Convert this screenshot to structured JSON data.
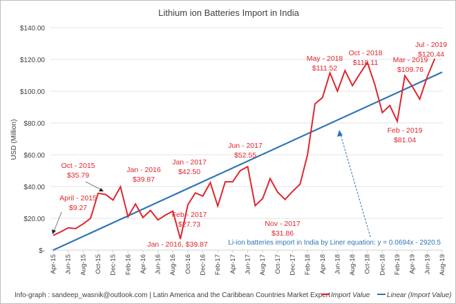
{
  "chart_data": {
    "type": "line",
    "title": "Lithium ion Batteries Import in India",
    "xlabel": "",
    "ylabel": "USD (Million)",
    "ylim": [
      0,
      140
    ],
    "y_ticks": [
      0,
      20,
      40,
      60,
      80,
      100,
      120,
      140
    ],
    "y_tick_labels": [
      "$-",
      "$20.00",
      "$40.00",
      "$60.00",
      "$80.00",
      "$100.00",
      "$120.00",
      "$140.00"
    ],
    "grid": true,
    "x_tick_labels": [
      "Apr-15",
      "Jun-15",
      "Aug-15",
      "Oct-15",
      "Dec-15",
      "Feb-16",
      "Apr-16",
      "Jun-16",
      "Aug-16",
      "Oct-16",
      "Dec-16",
      "Feb-17",
      "Apr-17",
      "Jun-17",
      "Aug-17",
      "Oct-17",
      "Dec-17",
      "Feb-18",
      "Apr-18",
      "Jun-18",
      "Aug-18",
      "Oct-18",
      "Dec-18",
      "Feb-19",
      "Apr-19",
      "Jun-19",
      "Aug-19"
    ],
    "series": [
      {
        "name": "Import Value",
        "color": "#e0242c",
        "values": [
          9.27,
          11.5,
          14,
          13.5,
          16.5,
          20,
          35.79,
          35,
          31.5,
          39.87,
          21,
          29,
          20.5,
          25,
          19,
          22,
          24.5,
          7,
          28.5,
          36,
          34,
          42.5,
          27.73,
          43,
          43,
          50,
          52.55,
          28,
          32.5,
          45,
          36.5,
          31.86,
          37,
          41.5,
          60,
          92,
          96,
          111.52,
          100,
          113,
          103.5,
          111,
          118.11,
          104,
          86.5,
          91,
          81.04,
          109.76,
          103,
          95,
          109,
          120.44
        ]
      },
      {
        "name": "Linear (Import Value)",
        "color": "#2e75b6",
        "trend_start": 0,
        "trend_end": 112
      }
    ],
    "legend": {
      "position": "bottom-right",
      "entries": [
        "Import Value",
        "Linear (Import Value)"
      ]
    },
    "annotations": [
      {
        "line1": "April - 2015",
        "line2": "$9.27"
      },
      {
        "line1": "Oct - 2015",
        "line2": "$35.79"
      },
      {
        "line1": "Jan - 2016",
        "line2": "$39.87"
      },
      {
        "line1": "Jan - 2016, $39.87",
        "line2": ""
      },
      {
        "line1": "Jan - 2017",
        "line2": "$42.50"
      },
      {
        "line1": "Feb - 2017",
        "line2": "$27.73"
      },
      {
        "line1": "Jun - 2017",
        "line2": "$52.55"
      },
      {
        "line1": "Nov - 2017",
        "line2": "$31.86"
      },
      {
        "line1": "May - 2018",
        "line2": "$111.52"
      },
      {
        "line1": "Oct - 2018",
        "line2": "$118.11"
      },
      {
        "line1": "Mar - 2019",
        "line2": "$109.76"
      },
      {
        "line1": "Feb - 2019",
        "line2": "$81.04"
      },
      {
        "line1": "Jul - 2019",
        "line2": "$120.44"
      }
    ],
    "equation_note": "Li-ion batteries import in India by Liner equation: y = 0.0694x - 2920.5"
  },
  "footer": {
    "credit": "Info-graph : sandeep_wasnik@outlook.com  |  Latin America and the Caribbean Countries Market Expert"
  }
}
